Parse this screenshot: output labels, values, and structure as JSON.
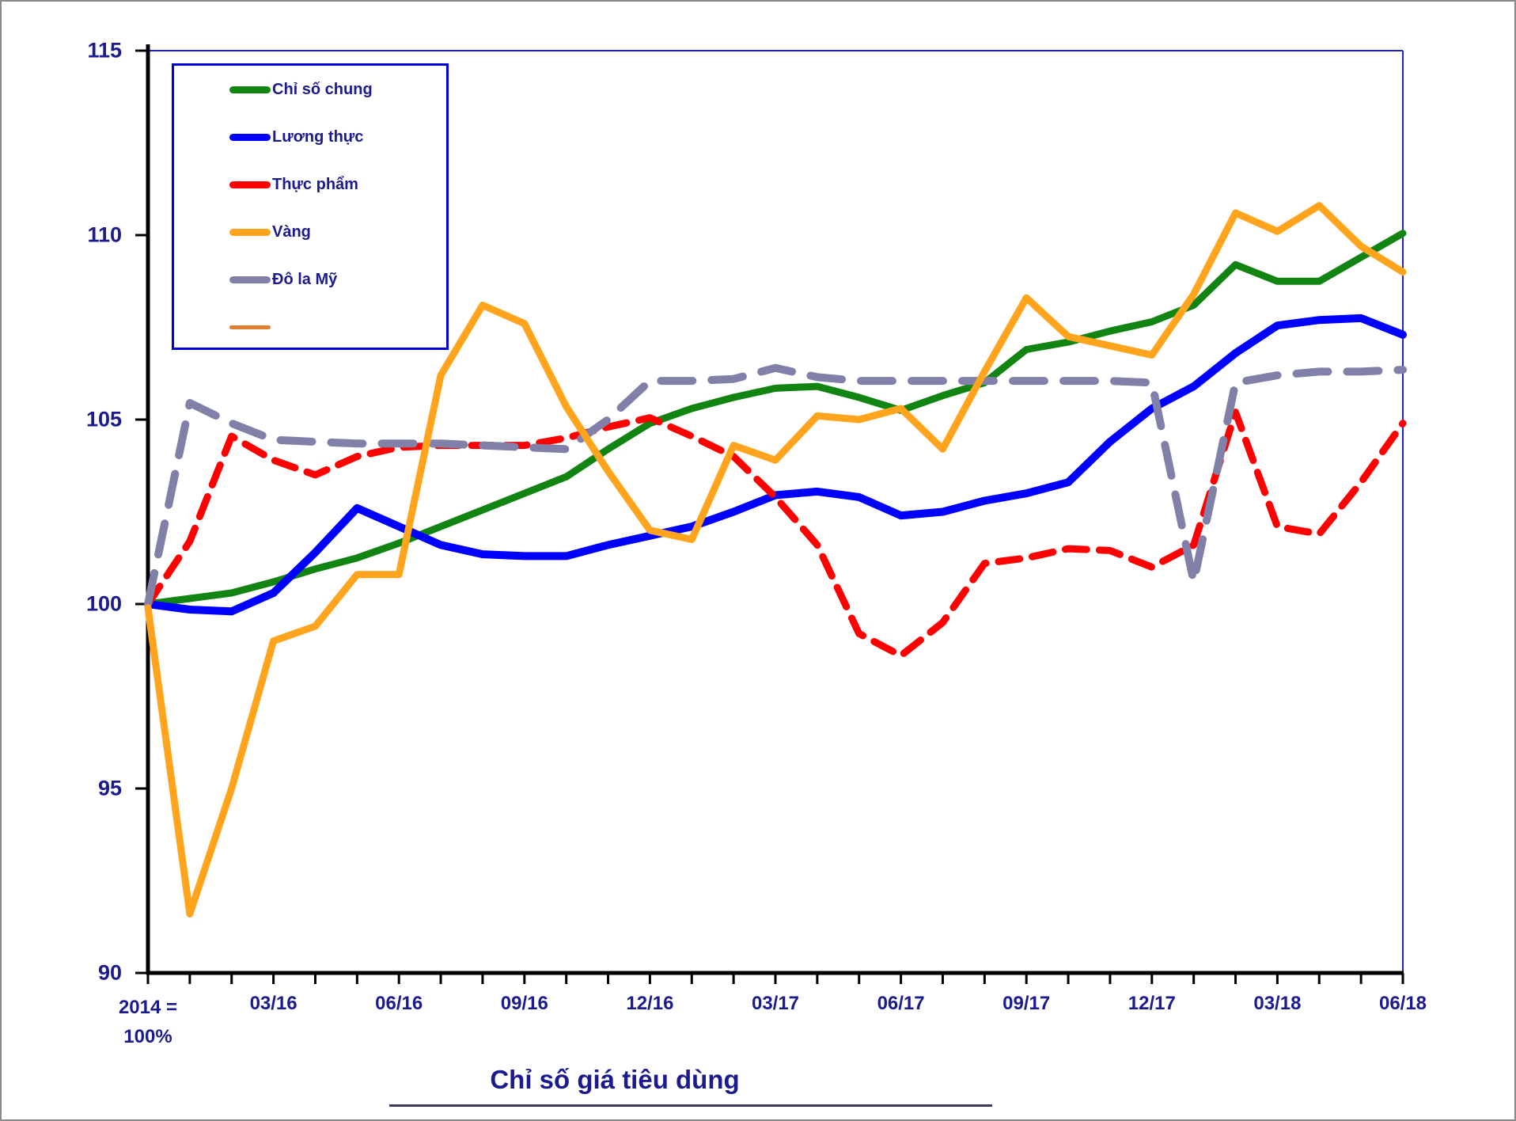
{
  "chart_data": {
    "type": "line",
    "title": "Chỉ số giá tiêu dùng",
    "origin_label": [
      "2014 =",
      "100%"
    ],
    "x_tick_labels": [
      "03/16",
      "06/16",
      "09/16",
      "12/16",
      "03/17",
      "06/17",
      "09/17",
      "12/17",
      "03/18",
      "06/18"
    ],
    "x_label_month_index": [
      3,
      6,
      9,
      12,
      15,
      18,
      21,
      24,
      27,
      30
    ],
    "months_total": 31,
    "ylim": [
      90,
      115
    ],
    "yticks": [
      115,
      110,
      105,
      100,
      95,
      90
    ],
    "grid": false,
    "legend_position": "top-left",
    "axis_text_color": "#1b1b8f",
    "plot_border_color": "#2222cc",
    "axis_line_color": "#000000",
    "series": [
      {
        "name": "Chỉ số chung",
        "color": "#128412",
        "style": "solid",
        "width": 9,
        "values": [
          100,
          100.15,
          100.3,
          100.6,
          100.95,
          101.25,
          101.65,
          102.1,
          102.55,
          103,
          103.45,
          104.2,
          104.9,
          105.3,
          105.6,
          105.85,
          105.9,
          105.6,
          105.25,
          105.65,
          106,
          106.9,
          107.1,
          107.4,
          107.65,
          108.1,
          109.2,
          108.75,
          108.75,
          109.4,
          110.05
        ]
      },
      {
        "name": "Lương thực",
        "color": "#0000ff",
        "style": "solid",
        "width": 10,
        "values": [
          100,
          99.85,
          99.8,
          100.3,
          101.4,
          102.6,
          102.1,
          101.6,
          101.35,
          101.3,
          101.3,
          101.6,
          101.85,
          102.1,
          102.5,
          102.95,
          103.05,
          102.9,
          102.4,
          102.5,
          102.8,
          103,
          103.3,
          104.4,
          105.3,
          105.9,
          106.8,
          107.55,
          107.7,
          107.75,
          107.3
        ]
      },
      {
        "name": "Thực phẩm",
        "color": "#ff0000",
        "style": "dashed",
        "width": 9,
        "values": [
          100,
          101.7,
          104.55,
          103.9,
          103.5,
          104,
          104.25,
          104.3,
          104.3,
          104.3,
          104.5,
          104.8,
          105.05,
          104.55,
          104,
          102.9,
          101.6,
          99.2,
          98.6,
          99.5,
          101.1,
          101.25,
          101.5,
          101.45,
          101,
          101.6,
          105.2,
          102.1,
          101.9,
          103.3,
          104.9
        ]
      },
      {
        "name": "Đô la Mỹ",
        "color": "#8080a8",
        "style": "dashed",
        "width": 10,
        "values": [
          100,
          105.45,
          104.9,
          104.45,
          104.4,
          104.35,
          104.35,
          104.35,
          104.3,
          104.25,
          104.2,
          105,
          106.05,
          106.05,
          106.1,
          106.4,
          106.15,
          106.05,
          106.05,
          106.05,
          106.05,
          106.05,
          106.05,
          106.05,
          106,
          100.6,
          106,
          106.2,
          106.3,
          106.3,
          106.35
        ]
      },
      {
        "name": "Vàng",
        "color": "#ffa41c",
        "style": "solid",
        "width": 9,
        "values": [
          99.9,
          91.6,
          95,
          99,
          99.4,
          100.8,
          100.8,
          106.2,
          108.1,
          107.6,
          105.35,
          103.6,
          102,
          101.75,
          104.3,
          103.9,
          105.1,
          105,
          105.3,
          104.2,
          106.3,
          108.3,
          107.25,
          107,
          106.75,
          108.4,
          110.6,
          110.1,
          110.8,
          109.7,
          109
        ]
      }
    ],
    "legend_order": [
      "Chỉ số chung",
      "Lương thực",
      "Thực phẩm",
      "Vàng",
      "Đô la Mỹ",
      ""
    ],
    "legend_extra_swatch_color": "#e07f30"
  },
  "layout_note": ""
}
